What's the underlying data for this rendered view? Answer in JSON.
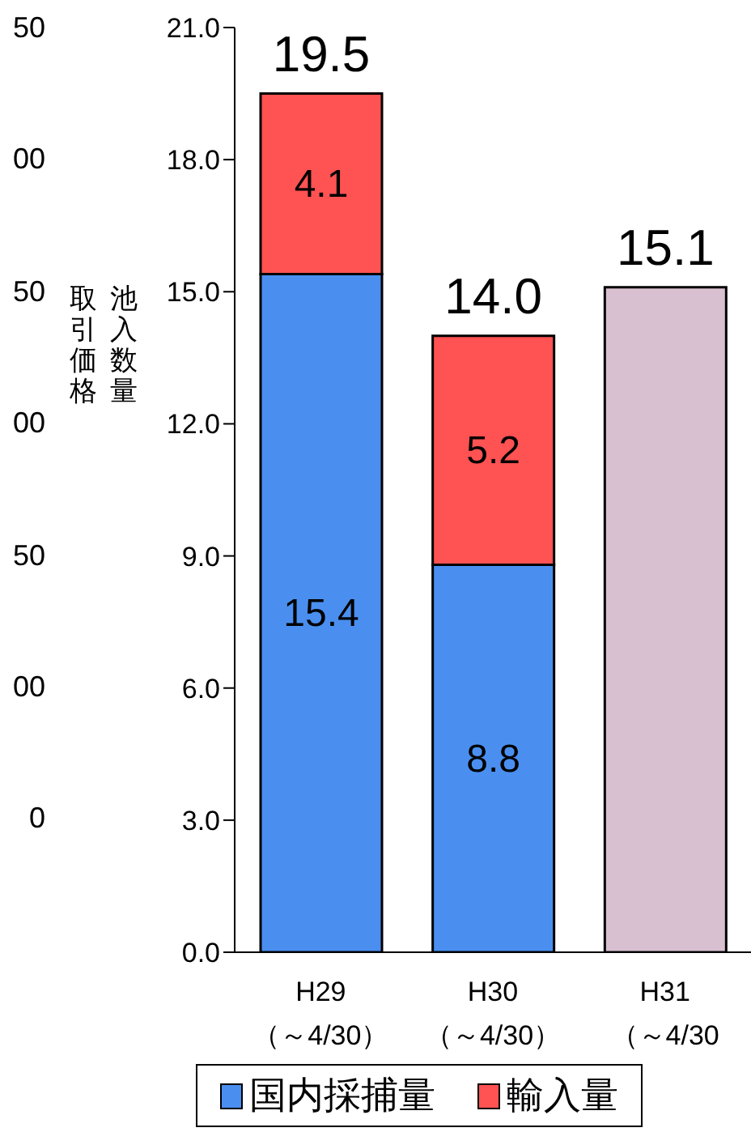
{
  "chart_data": {
    "type": "bar",
    "stacked": true,
    "categories": [
      "H29\n（～4/30）",
      "H30\n（～4/30）",
      "H31\n（～4/30"
    ],
    "series": [
      {
        "name": "国内採捕量",
        "color": "#4a8ff0",
        "values": [
          15.4,
          8.8,
          null
        ],
        "value_labels": [
          "15.4",
          "8.8",
          null
        ]
      },
      {
        "name": "輸入量",
        "color": "#ff5252",
        "values": [
          4.1,
          5.2,
          null
        ],
        "value_labels": [
          "4.1",
          "5.2",
          null
        ]
      },
      {
        "color": "#d8c0d0",
        "values": [
          null,
          null,
          15.1
        ],
        "value_labels": [
          null,
          null,
          null
        ]
      }
    ],
    "totals": [
      "19.5",
      "14.0",
      "15.1"
    ],
    "ylabel": "池入数量",
    "y2label": "取引価格",
    "ylim": [
      0,
      21
    ],
    "yticks": [
      {
        "value": 0,
        "label": "0.0"
      },
      {
        "value": 3,
        "label": "3.0"
      },
      {
        "value": 6,
        "label": "6.0"
      },
      {
        "value": 9,
        "label": "9.0"
      },
      {
        "value": 12,
        "label": "12.0"
      },
      {
        "value": 15,
        "label": "15.0"
      },
      {
        "value": 18,
        "label": "18.0"
      },
      {
        "value": 21,
        "label": "21.0"
      }
    ],
    "annotations": [
      "50",
      "00",
      "50",
      "00",
      "50",
      "00",
      "0"
    ],
    "grid": false,
    "legend": "bottom"
  }
}
